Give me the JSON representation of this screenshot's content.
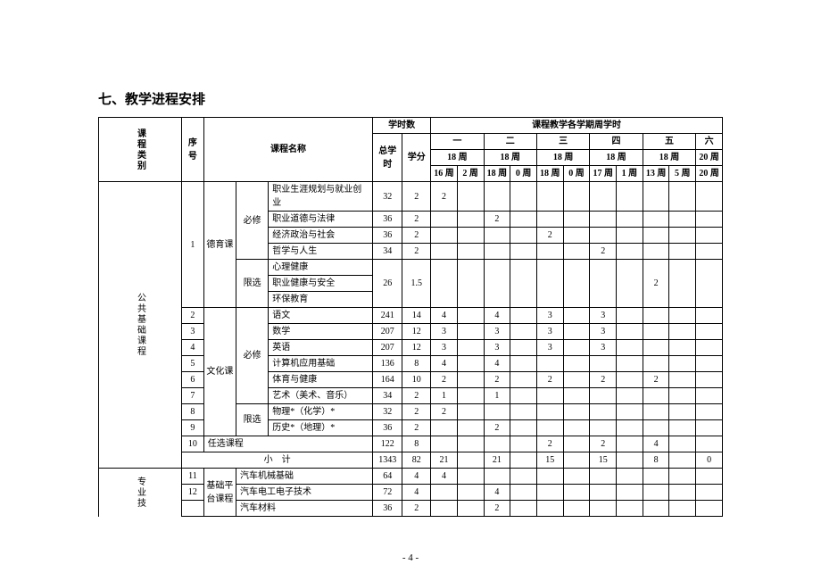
{
  "title": "七、教学进程安排",
  "headers": {
    "cat": "课程类别",
    "seq": "序号",
    "name": "课程名称",
    "hours_group": "学时数",
    "total_hours": "总学时",
    "credits": "学分",
    "sem_group": "课程教学各学期周学时",
    "sem_nums": [
      "一",
      "二",
      "三",
      "四",
      "五",
      "六"
    ],
    "sem_weeks": [
      "18 周",
      "18 周",
      "18 周",
      "18 周",
      "18 周",
      "20 周"
    ],
    "sem_sub": [
      "16 周",
      "2 周",
      "18 周",
      "0 周",
      "18 周",
      "0 周",
      "17 周",
      "1 周",
      "13 周",
      "5 周",
      "20 周"
    ]
  },
  "cat_public": "公共基础课程",
  "cat_major": "专业技",
  "rows": [
    {
      "seq": "1",
      "c2": "德育课",
      "c3": "必修",
      "name": "职业生涯规划与就业创业",
      "th": "32",
      "cr": "2",
      "s": [
        "2",
        "",
        "",
        "",
        "",
        "",
        "",
        "",
        "",
        "",
        ""
      ]
    },
    {
      "name": "职业道德与法律",
      "th": "36",
      "cr": "2",
      "s": [
        "",
        "",
        "2",
        "",
        "",
        "",
        "",
        "",
        "",
        "",
        ""
      ]
    },
    {
      "name": "经济政治与社会",
      "th": "36",
      "cr": "2",
      "s": [
        "",
        "",
        "",
        "",
        "2",
        "",
        "",
        "",
        "",
        "",
        ""
      ]
    },
    {
      "name": "哲学与人生",
      "th": "34",
      "cr": "2",
      "s": [
        "",
        "",
        "",
        "",
        "",
        "",
        "2",
        "",
        "",
        "",
        ""
      ]
    },
    {
      "c3": "限选",
      "name": "心理健康",
      "th": "26",
      "cr": "1.5",
      "s": [
        "",
        "",
        "",
        "",
        "",
        "",
        "",
        "",
        "2",
        "",
        ""
      ]
    },
    {
      "name": "职业健康与安全"
    },
    {
      "name": "环保教育"
    },
    {
      "seq": "2",
      "c2": "文化课",
      "c3": "必修",
      "name": "语文",
      "th": "241",
      "cr": "14",
      "s": [
        "4",
        "",
        "4",
        "",
        "3",
        "",
        "3",
        "",
        "",
        "",
        ""
      ]
    },
    {
      "seq": "3",
      "name": "数学",
      "th": "207",
      "cr": "12",
      "s": [
        "3",
        "",
        "3",
        "",
        "3",
        "",
        "3",
        "",
        "",
        "",
        ""
      ]
    },
    {
      "seq": "4",
      "name": "英语",
      "th": "207",
      "cr": "12",
      "s": [
        "3",
        "",
        "3",
        "",
        "3",
        "",
        "3",
        "",
        "",
        "",
        ""
      ]
    },
    {
      "seq": "5",
      "name": "计算机应用基础",
      "th": "136",
      "cr": "8",
      "s": [
        "4",
        "",
        "4",
        "",
        "",
        "",
        "",
        "",
        "",
        "",
        ""
      ]
    },
    {
      "seq": "6",
      "name": "体育与健康",
      "th": "164",
      "cr": "10",
      "s": [
        "2",
        "",
        "2",
        "",
        "2",
        "",
        "2",
        "",
        "2",
        "",
        ""
      ]
    },
    {
      "seq": "7",
      "name": "艺术（美术、音乐）",
      "th": "34",
      "cr": "2",
      "s": [
        "1",
        "",
        "1",
        "",
        "",
        "",
        "",
        "",
        "",
        "",
        ""
      ]
    },
    {
      "seq": "8",
      "c3": "限选",
      "name": "物理*（化学）*",
      "th": "32",
      "cr": "2",
      "s": [
        "2",
        "",
        "",
        "",
        "",
        "",
        "",
        "",
        "",
        "",
        ""
      ]
    },
    {
      "seq": "9",
      "name": "历史*（地理）*",
      "th": "36",
      "cr": "2",
      "s": [
        "",
        "",
        "2",
        "",
        "",
        "",
        "",
        "",
        "",
        "",
        ""
      ]
    },
    {
      "seq": "10",
      "c3": "任选课程",
      "name": "",
      "th": "122",
      "cr": "8",
      "s": [
        "",
        "",
        "",
        "",
        "2",
        "",
        "2",
        "",
        "4",
        "",
        ""
      ]
    },
    {
      "subtotal": true,
      "name": "小　计",
      "th": "1343",
      "cr": "82",
      "s": [
        "21",
        "",
        "21",
        "",
        "15",
        "",
        "15",
        "",
        "8",
        "",
        "0"
      ]
    },
    {
      "seq": "11",
      "c2": "基础平台课程",
      "name": "汽车机械基础",
      "th": "64",
      "cr": "4",
      "s": [
        "4",
        "",
        "",
        "",
        "",
        "",
        "",
        "",
        "",
        "",
        ""
      ]
    },
    {
      "seq": "12",
      "name": "汽车电工电子技术",
      "th": "72",
      "cr": "4",
      "s": [
        "",
        "",
        "4",
        "",
        "",
        "",
        "",
        "",
        "",
        "",
        ""
      ]
    },
    {
      "name": "汽车材料",
      "th": "36",
      "cr": "2",
      "s": [
        "",
        "",
        "2",
        "",
        "",
        "",
        "",
        "",
        "",
        "",
        ""
      ]
    }
  ],
  "footer": "- 4 -"
}
